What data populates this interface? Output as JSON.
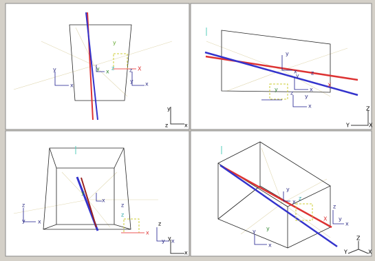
{
  "viewports": [
    {
      "axis_labels": [
        "y",
        "z",
        "x"
      ],
      "gizmo_labels": [
        "y",
        "x",
        "y",
        "x",
        "z",
        "y",
        "X",
        "z",
        "y",
        "x"
      ]
    },
    {
      "axis_labels": [
        "Z",
        "Y",
        "X"
      ],
      "gizmo_labels": [
        "y",
        "y",
        "x",
        "z",
        "x",
        "z",
        "y",
        "x",
        "X",
        "y"
      ]
    },
    {
      "axis_labels": [
        "z",
        "y",
        "x"
      ],
      "gizmo_labels": [
        "z",
        "y",
        "x",
        "x",
        "z",
        "y",
        "x",
        "z",
        "y",
        "x"
      ]
    },
    {
      "axis_labels": [
        "Z",
        "Y",
        "X"
      ],
      "gizmo_labels": [
        "y",
        "y",
        "z",
        "x",
        "X",
        "y",
        "x",
        "z",
        "y",
        "x"
      ]
    }
  ]
}
